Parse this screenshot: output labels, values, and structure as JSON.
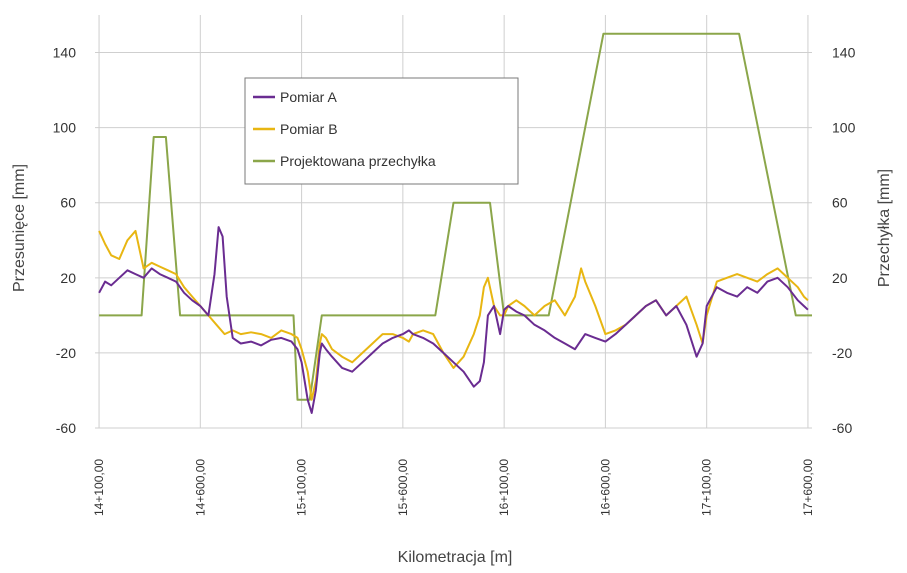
{
  "chart_data": {
    "type": "line",
    "xlabel": "Kilometracja [m]",
    "ylabel_left": "Przesunięce [mm]",
    "ylabel_right": "Przechyłka [mm]",
    "ylim": [
      -60,
      160
    ],
    "yticks": [
      -60,
      -20,
      20,
      60,
      100,
      140
    ],
    "ytick_labels": [
      "-60",
      "-20",
      "20",
      "60",
      "100",
      "140"
    ],
    "xlim": [
      14080,
      17620
    ],
    "xticks": [
      14100,
      14600,
      15100,
      15600,
      16100,
      16600,
      17100,
      17600
    ],
    "xtick_labels": [
      "14+100,00",
      "14+600,00",
      "15+100,00",
      "15+600,00",
      "16+100,00",
      "16+600,00",
      "17+100,00",
      "17+600,00"
    ],
    "grid": true,
    "legend_position": "top-left-center",
    "series": [
      {
        "name": "Pomiar A",
        "color": "#6a2c91",
        "x": [
          14100,
          14130,
          14160,
          14200,
          14240,
          14280,
          14320,
          14360,
          14400,
          14440,
          14480,
          14520,
          14560,
          14600,
          14640,
          14670,
          14690,
          14710,
          14730,
          14760,
          14800,
          14850,
          14900,
          14950,
          15000,
          15050,
          15080,
          15100,
          15130,
          15150,
          15170,
          15190,
          15200,
          15220,
          15250,
          15300,
          15350,
          15400,
          15450,
          15500,
          15550,
          15600,
          15630,
          15650,
          15700,
          15750,
          15800,
          15850,
          15900,
          15950,
          15980,
          16000,
          16020,
          16050,
          16080,
          16100,
          16120,
          16160,
          16200,
          16250,
          16300,
          16350,
          16400,
          16450,
          16500,
          16550,
          16600,
          16650,
          16700,
          16750,
          16800,
          16850,
          16900,
          16950,
          17000,
          17050,
          17080,
          17100,
          17150,
          17200,
          17250,
          17300,
          17350,
          17400,
          17450,
          17500,
          17550,
          17580,
          17600
        ],
        "y": [
          12,
          18,
          16,
          20,
          24,
          22,
          20,
          25,
          22,
          20,
          18,
          12,
          8,
          5,
          0,
          22,
          47,
          42,
          10,
          -12,
          -15,
          -14,
          -16,
          -13,
          -12,
          -14,
          -18,
          -25,
          -45,
          -52,
          -40,
          -20,
          -15,
          -18,
          -22,
          -28,
          -30,
          -25,
          -20,
          -15,
          -12,
          -10,
          -8,
          -10,
          -12,
          -15,
          -20,
          -25,
          -30,
          -38,
          -35,
          -25,
          0,
          5,
          -10,
          3,
          5,
          2,
          0,
          -5,
          -8,
          -12,
          -15,
          -18,
          -10,
          -12,
          -14,
          -10,
          -5,
          0,
          5,
          8,
          0,
          5,
          -5,
          -22,
          -15,
          5,
          15,
          12,
          10,
          15,
          12,
          18,
          20,
          15,
          8,
          5,
          3
        ]
      },
      {
        "name": "Pomiar B",
        "color": "#e8b612",
        "x": [
          14100,
          14130,
          14160,
          14200,
          14240,
          14280,
          14320,
          14360,
          14400,
          14440,
          14480,
          14520,
          14560,
          14600,
          14640,
          14680,
          14720,
          14760,
          14800,
          14850,
          14900,
          14950,
          15000,
          15050,
          15080,
          15100,
          15130,
          15150,
          15170,
          15190,
          15200,
          15220,
          15250,
          15300,
          15350,
          15400,
          15450,
          15500,
          15550,
          15600,
          15630,
          15650,
          15700,
          15750,
          15800,
          15850,
          15900,
          15950,
          15980,
          16000,
          16020,
          16050,
          16080,
          16100,
          16120,
          16160,
          16200,
          16250,
          16300,
          16350,
          16400,
          16450,
          16480,
          16500,
          16550,
          16600,
          16650,
          16700,
          16750,
          16800,
          16850,
          16900,
          16950,
          17000,
          17050,
          17080,
          17100,
          17150,
          17200,
          17250,
          17300,
          17350,
          17400,
          17450,
          17500,
          17550,
          17580,
          17600
        ],
        "y": [
          45,
          38,
          32,
          30,
          40,
          45,
          25,
          28,
          26,
          24,
          22,
          15,
          10,
          5,
          0,
          -5,
          -10,
          -8,
          -10,
          -9,
          -10,
          -12,
          -8,
          -10,
          -12,
          -18,
          -30,
          -45,
          -35,
          -15,
          -10,
          -12,
          -18,
          -22,
          -25,
          -20,
          -15,
          -10,
          -10,
          -12,
          -14,
          -10,
          -8,
          -10,
          -20,
          -28,
          -22,
          -10,
          0,
          15,
          20,
          5,
          0,
          0,
          5,
          8,
          5,
          0,
          5,
          8,
          0,
          10,
          25,
          18,
          5,
          -10,
          -8,
          -5,
          0,
          5,
          8,
          0,
          5,
          10,
          -5,
          -15,
          0,
          18,
          20,
          22,
          20,
          18,
          22,
          25,
          20,
          15,
          10,
          8
        ]
      },
      {
        "name": "Projektowana przechyłka",
        "color": "#8ba64a",
        "x": [
          14100,
          14310,
          14370,
          14400,
          14430,
          14500,
          14560,
          14600,
          14920,
          14980,
          15060,
          15080,
          15140,
          15200,
          15760,
          15850,
          15960,
          16030,
          16100,
          16320,
          16590,
          16620,
          16920,
          17200,
          17260,
          17540,
          17620
        ],
        "y": [
          0,
          0,
          95,
          95,
          95,
          0,
          0,
          0,
          0,
          0,
          0,
          -45,
          -45,
          0,
          0,
          60,
          60,
          60,
          0,
          0,
          150,
          150,
          150,
          150,
          150,
          0,
          0
        ]
      }
    ]
  }
}
